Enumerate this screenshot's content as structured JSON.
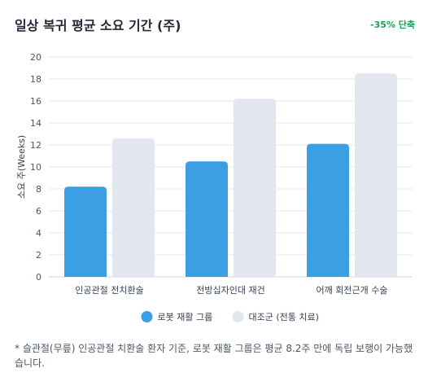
{
  "header": {
    "title": "일상 복귀 평균 소요 기간 (주)",
    "badge": "-35% 단축"
  },
  "footnote": "* 슬관절(무릎) 인공관절 치환술 환자 기준, 로봇 재활 그룹은 평균 8.2주 만에 독립 보행이 가능했습니다.",
  "colors": {
    "robot": "#3b9fe3",
    "control": "#e1e6ef",
    "badge": "#1e9e55",
    "grid": "#e5e7eb"
  },
  "chart_data": {
    "type": "bar",
    "categories": [
      "인공관절 전치환술",
      "전방십자인대 재건",
      "어깨 회전근개 수술"
    ],
    "series": [
      {
        "name": "로봇 재활 그룹",
        "values": [
          8.2,
          10.5,
          12.1
        ],
        "color": "#3b9fe3"
      },
      {
        "name": "대조군 (전통 치료)",
        "values": [
          12.6,
          16.2,
          18.5
        ],
        "color": "#e1e6ef"
      }
    ],
    "ylabel": "소요 주(Weeks)",
    "ylim": [
      0,
      20
    ],
    "yticks": [
      0,
      2,
      4,
      6,
      8,
      10,
      12,
      14,
      16,
      18,
      20
    ],
    "grid": true,
    "legend_position": "bottom"
  }
}
